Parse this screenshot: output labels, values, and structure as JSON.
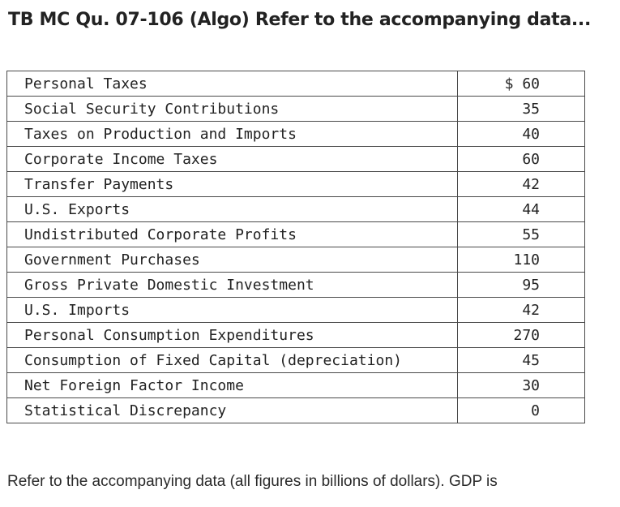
{
  "title": "TB MC Qu. 07-106 (Algo) Refer to the accompanying data...",
  "table": {
    "rows": [
      {
        "label": "Personal Taxes",
        "value": "$ 60"
      },
      {
        "label": "Social Security Contributions",
        "value": "35"
      },
      {
        "label": "Taxes on Production and Imports",
        "value": "40"
      },
      {
        "label": "Corporate Income Taxes",
        "value": "60"
      },
      {
        "label": "Transfer Payments",
        "value": "42"
      },
      {
        "label": "U.S. Exports",
        "value": "44"
      },
      {
        "label": "Undistributed Corporate Profits",
        "value": "55"
      },
      {
        "label": "Government Purchases",
        "value": "110"
      },
      {
        "label": "Gross Private Domestic Investment",
        "value": "95"
      },
      {
        "label": "U.S. Imports",
        "value": "42"
      },
      {
        "label": "Personal Consumption Expenditures",
        "value": "270"
      },
      {
        "label": "Consumption of Fixed Capital (depreciation)",
        "value": "45"
      },
      {
        "label": "Net Foreign Factor Income",
        "value": "30"
      },
      {
        "label": "Statistical Discrepancy",
        "value": "0"
      }
    ]
  },
  "question": "Refer to the accompanying data (all figures in billions of dollars). GDP is"
}
